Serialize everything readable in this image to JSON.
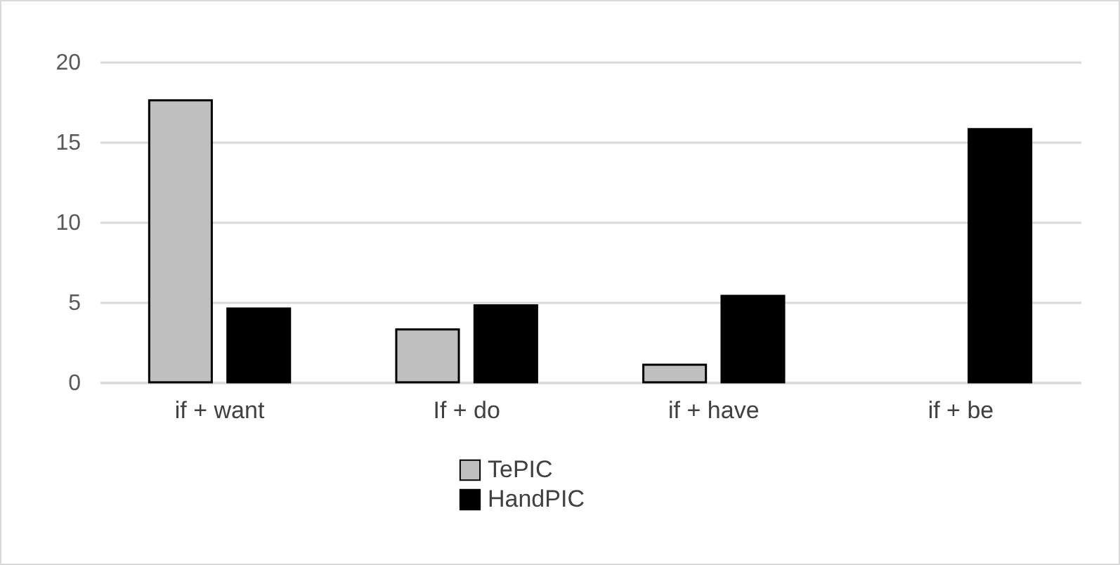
{
  "chart_data": {
    "type": "bar",
    "categories": [
      "if + want",
      "If + do",
      "if + have",
      "if + be"
    ],
    "series": [
      {
        "name": "TePIC",
        "color": "#bfbfbf",
        "values": [
          17.6,
          3.3,
          1.1,
          null
        ]
      },
      {
        "name": "HandPIC",
        "color": "#000000",
        "values": [
          4.6,
          4.8,
          5.4,
          15.8
        ]
      }
    ],
    "ylim": [
      0,
      20
    ],
    "yticks": [
      0,
      5,
      10,
      15,
      20
    ],
    "grid": "y",
    "legend": "bottom"
  }
}
